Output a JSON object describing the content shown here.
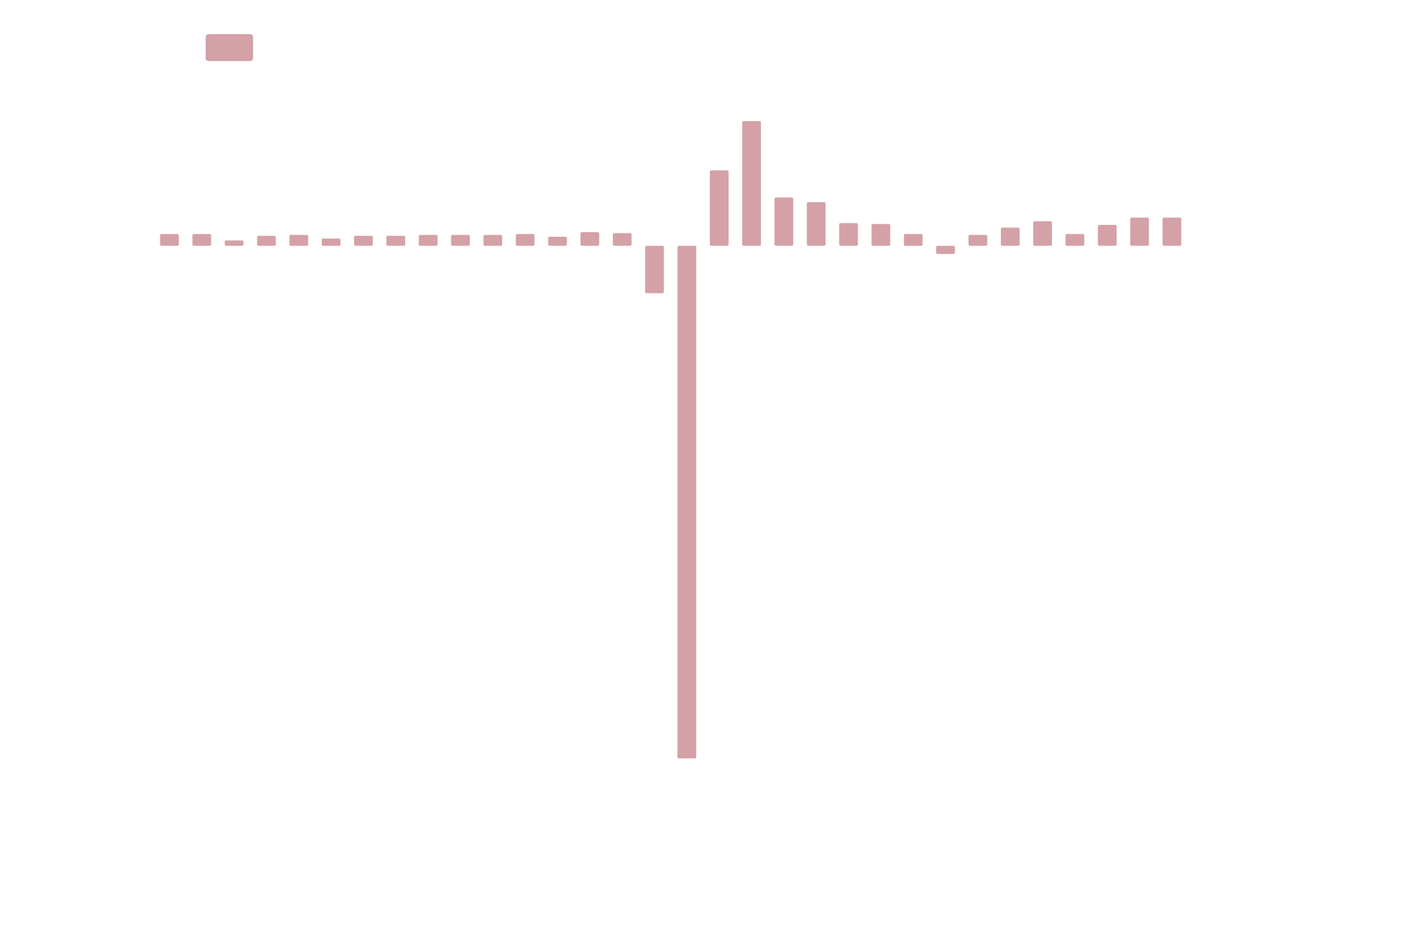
{
  "chart_data": {
    "type": "bar",
    "categories": [
      null,
      null,
      null,
      null,
      null,
      null,
      null,
      null,
      null,
      null,
      null,
      null,
      null,
      null,
      null,
      null,
      null,
      null,
      null,
      null,
      null,
      null,
      null,
      null,
      null,
      null,
      null,
      null,
      null,
      null,
      null,
      null
    ],
    "values": [
      13,
      13,
      6,
      11,
      12,
      8,
      11,
      11,
      12,
      12,
      12,
      13,
      10,
      15,
      14,
      -52,
      -563,
      83,
      137,
      53,
      48,
      25,
      24,
      13,
      -9,
      12,
      20,
      27,
      13,
      23,
      31,
      31
    ],
    "color": "#d4a1a6",
    "ylim": [
      -600,
      270
    ]
  }
}
